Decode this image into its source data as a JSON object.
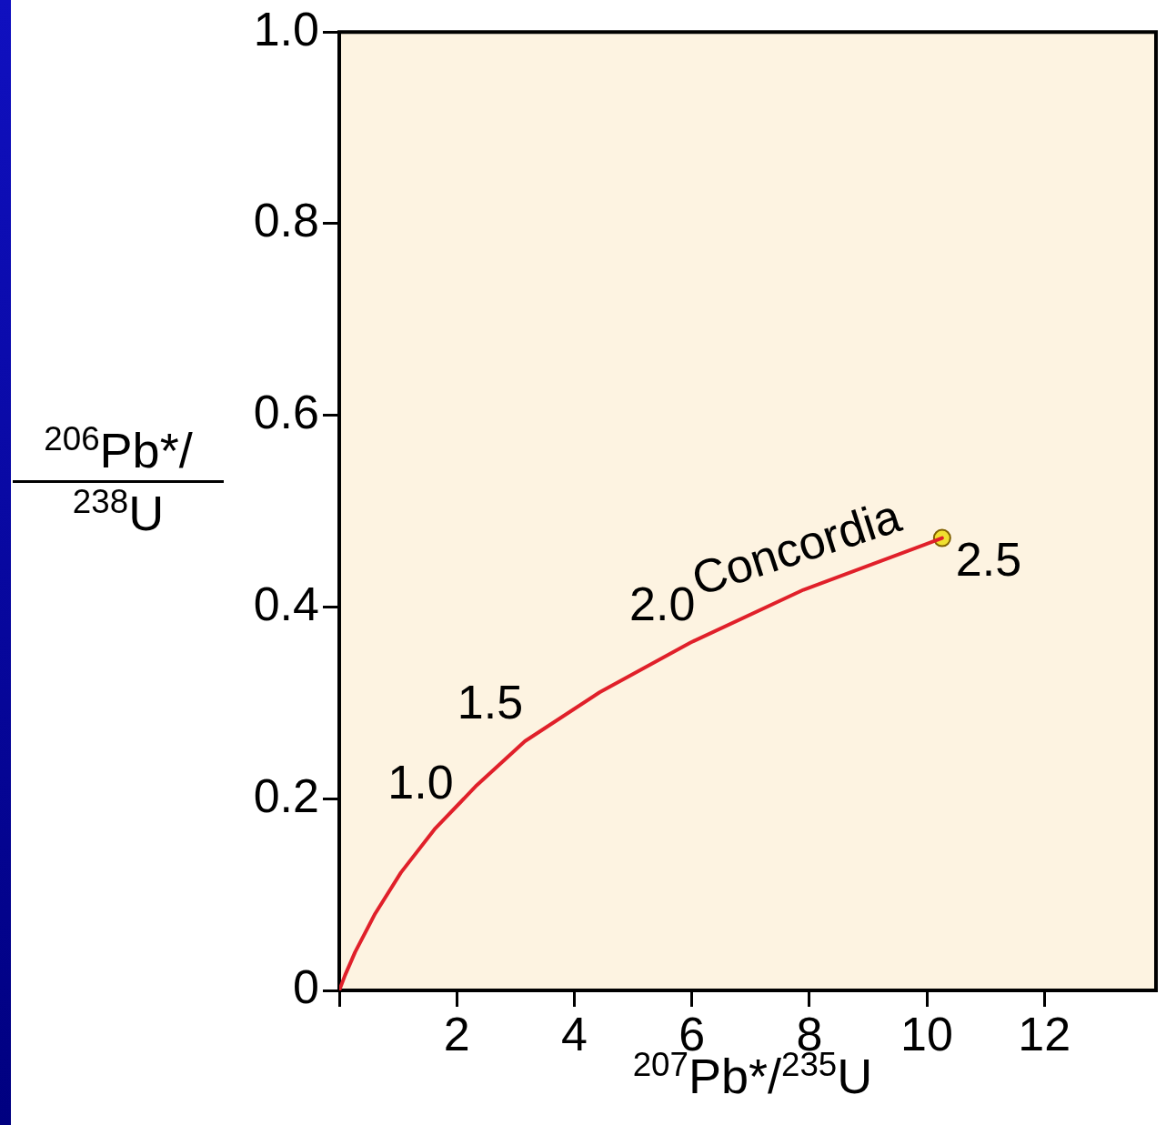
{
  "chart_data": {
    "type": "line",
    "xlabel": "$^{207}$Pb*/$^{235}$U",
    "ylabel": "$^{206}$Pb*/$^{238}$U",
    "xlim": [
      0,
      13.9
    ],
    "ylim": [
      0,
      1
    ],
    "xticks": [
      {
        "value": 0,
        "label": null
      },
      2,
      4,
      6,
      8,
      10,
      12
    ],
    "yticks": [
      0,
      0.2,
      0.4,
      0.6,
      0.8,
      {
        "value": 1,
        "label": "1.0"
      }
    ],
    "grid": false,
    "legend": false,
    "series": [
      {
        "type": "line",
        "color": "#e0202a",
        "marker": "none",
        "x": [
          0,
          0.1,
          0.27,
          0.61,
          1.05,
          1.62,
          2.34,
          3.16,
          4.43,
          5.98,
          7.9,
          10.26
        ],
        "values": [
          0,
          0.016,
          0.04,
          0.08,
          0.123,
          0.168,
          0.214,
          0.26,
          0.311,
          0.363,
          0.418,
          0.472
        ]
      },
      {
        "type": "scatter",
        "color": "#f0e030",
        "marker": "circle",
        "x": [
          10.26
        ],
        "values": [
          0.472
        ]
      }
    ],
    "annotations": [
      {
        "text": "1.0",
        "x": 1.62,
        "y": 0.168
      },
      {
        "text": "1.5",
        "x": 3.16,
        "y": 0.26
      },
      {
        "text": "2.0",
        "x": 5.98,
        "y": 0.363
      },
      {
        "text": "2.5",
        "x": 10.26,
        "y": 0.472
      },
      {
        "text": "Concordia",
        "x": 7.9,
        "y": 0.418
      }
    ]
  }
}
